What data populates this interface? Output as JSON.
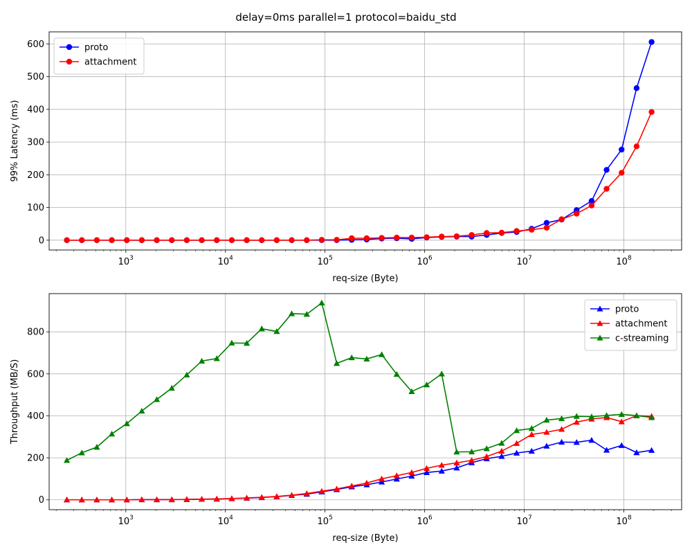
{
  "figure": {
    "suptitle": "delay=0ms parallel=1 protocol=baidu_std"
  },
  "chart_data": [
    {
      "type": "line",
      "xscale": "log",
      "xlim": [
        170,
        380000000
      ],
      "ylim": [
        -30,
        637
      ],
      "xlabel": "req-size (Byte)",
      "ylabel": "99% Latency (ms)",
      "grid": true,
      "legend_position": "top-left",
      "x_ticks": [
        {
          "value": 1000,
          "base": "10",
          "exp": "3"
        },
        {
          "value": 10000,
          "base": "10",
          "exp": "4"
        },
        {
          "value": 100000,
          "base": "10",
          "exp": "5"
        },
        {
          "value": 1000000,
          "base": "10",
          "exp": "6"
        },
        {
          "value": 10000000,
          "base": "10",
          "exp": "7"
        },
        {
          "value": 100000000,
          "base": "10",
          "exp": "8"
        }
      ],
      "y_ticks": [
        0,
        100,
        200,
        300,
        400,
        500,
        600
      ],
      "x": [
        256,
        362,
        512,
        724,
        1024,
        1448,
        2048,
        2896,
        4096,
        5793,
        8192,
        11585,
        16384,
        23170,
        32768,
        46341,
        65536,
        92682,
        131072,
        185364,
        262144,
        370728,
        524288,
        741455,
        1048576,
        1482910,
        2097152,
        2965821,
        4194304,
        5931642,
        8388608,
        11863283,
        16777216,
        23726566,
        33554432,
        47453133,
        67108864,
        94906265,
        134217728,
        189812531
      ],
      "series": [
        {
          "name": "proto",
          "color": "#0000ff",
          "marker": "circle",
          "values": [
            0,
            0,
            0,
            0,
            0,
            0,
            0,
            0,
            0,
            0,
            0,
            0,
            0,
            0,
            0,
            0,
            0,
            0,
            0,
            1,
            2,
            5,
            6,
            4,
            8,
            10,
            11,
            11,
            16,
            22,
            25,
            35,
            53,
            63,
            92,
            120,
            215,
            277,
            465,
            606
          ]
        },
        {
          "name": "attachment",
          "color": "#ff0000",
          "marker": "circle",
          "values": [
            0,
            0,
            0,
            0,
            0,
            0,
            0,
            0,
            0,
            0,
            0,
            0,
            0,
            0,
            0,
            0,
            0,
            1,
            1,
            6,
            6,
            7,
            8,
            8,
            9,
            11,
            12,
            16,
            22,
            23,
            28,
            32,
            38,
            64,
            81,
            106,
            157,
            206,
            287,
            392
          ]
        }
      ]
    },
    {
      "type": "line",
      "xscale": "log",
      "xlim": [
        170,
        380000000
      ],
      "ylim": [
        -47,
        982
      ],
      "xlabel": "req-size (Byte)",
      "ylabel": "Throughput (MB/S)",
      "grid": true,
      "legend_position": "top-right",
      "x_ticks": [
        {
          "value": 1000,
          "base": "10",
          "exp": "3"
        },
        {
          "value": 10000,
          "base": "10",
          "exp": "4"
        },
        {
          "value": 100000,
          "base": "10",
          "exp": "5"
        },
        {
          "value": 1000000,
          "base": "10",
          "exp": "6"
        },
        {
          "value": 10000000,
          "base": "10",
          "exp": "7"
        },
        {
          "value": 100000000,
          "base": "10",
          "exp": "8"
        }
      ],
      "y_ticks": [
        0,
        200,
        400,
        600,
        800
      ],
      "x": [
        256,
        362,
        512,
        724,
        1024,
        1448,
        2048,
        2896,
        4096,
        5793,
        8192,
        11585,
        16384,
        23170,
        32768,
        46341,
        65536,
        92682,
        131072,
        185364,
        262144,
        370728,
        524288,
        741455,
        1048576,
        1482910,
        2097152,
        2965821,
        4194304,
        5931642,
        8388608,
        11863283,
        16777216,
        23726566,
        33554432,
        47453133,
        67108864,
        94906265,
        134217728,
        189812531
      ],
      "series": [
        {
          "name": "proto",
          "color": "#0000ff",
          "marker": "triangle",
          "values": [
            0,
            0,
            0,
            0,
            0,
            1,
            1,
            1,
            2,
            3,
            4,
            6,
            8,
            11,
            15,
            21,
            27,
            38,
            49,
            62,
            72,
            85,
            99,
            113,
            130,
            137,
            152,
            177,
            196,
            207,
            223,
            232,
            256,
            275,
            274,
            284,
            237,
            259,
            225,
            236
          ]
        },
        {
          "name": "attachment",
          "color": "#ff0000",
          "marker": "triangle",
          "values": [
            0,
            0,
            0,
            0,
            0,
            1,
            1,
            1,
            2,
            3,
            4,
            6,
            9,
            12,
            16,
            22,
            30,
            41,
            52,
            66,
            80,
            100,
            115,
            130,
            150,
            165,
            176,
            188,
            206,
            232,
            269,
            311,
            322,
            336,
            370,
            385,
            392,
            372,
            401,
            398
          ]
        },
        {
          "name": "c-streaming",
          "color": "#008000",
          "marker": "triangle",
          "values": [
            188,
            224,
            251,
            314,
            363,
            423,
            478,
            532,
            595,
            661,
            673,
            747,
            746,
            815,
            802,
            887,
            884,
            938,
            650,
            677,
            671,
            692,
            598,
            516,
            548,
            600,
            228,
            229,
            244,
            270,
            330,
            340,
            380,
            387,
            398,
            396,
            402,
            407,
            401,
            392
          ]
        }
      ]
    }
  ]
}
